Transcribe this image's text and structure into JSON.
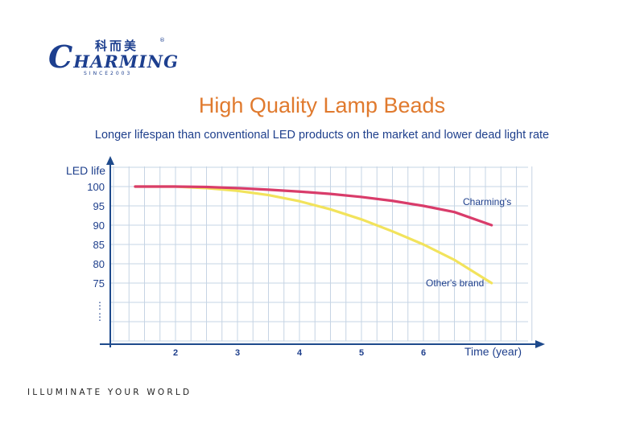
{
  "logo": {
    "chinese": "科而美",
    "reg": "®",
    "main_first": "C",
    "main_rest": "HARMING",
    "since": "SINCE2003"
  },
  "header": {
    "title": "High Quality Lamp Beads",
    "subtitle": "Longer lifespan than conventional LED products on the market and lower dead light rate"
  },
  "footer": {
    "tagline": "ILLUMINATE YOUR WORLD"
  },
  "colors": {
    "charming": "#d93c6a",
    "other": "#f2e35c",
    "grid": "#c6d4e4",
    "axis": "#1e4a8c",
    "text": "#1e3f8c",
    "title": "#e07a2e"
  },
  "chart_data": {
    "type": "line",
    "ylabel": "LED life",
    "xlabel": "Time (year)",
    "x_ticks": [
      "2",
      "3",
      "4",
      "5",
      "6"
    ],
    "y_ticks": [
      "100",
      "95",
      "90",
      "85",
      "80",
      "75"
    ],
    "y_ellipsis": [
      "⋮",
      "⋮"
    ],
    "xlim": [
      0.8,
      7.1
    ],
    "ylim": [
      65,
      105
    ],
    "grid": true,
    "series": [
      {
        "name": "Charming's",
        "color": "#d93c6a",
        "x": [
          1.35,
          2,
          2.5,
          3,
          3.5,
          4,
          4.5,
          5,
          5.5,
          6,
          6.5,
          7.1
        ],
        "y": [
          100,
          100,
          99.9,
          99.6,
          99.2,
          98.7,
          98.1,
          97.3,
          96.3,
          95,
          93.4,
          90
        ]
      },
      {
        "name": "Other's brand",
        "color": "#f2e35c",
        "x": [
          1.35,
          2,
          2.5,
          3,
          3.5,
          4,
          4.5,
          5,
          5.5,
          6,
          6.5,
          7.1
        ],
        "y": [
          100,
          100,
          99.6,
          98.9,
          97.8,
          96.2,
          94.1,
          91.5,
          88.4,
          85,
          81,
          75
        ]
      }
    ]
  }
}
